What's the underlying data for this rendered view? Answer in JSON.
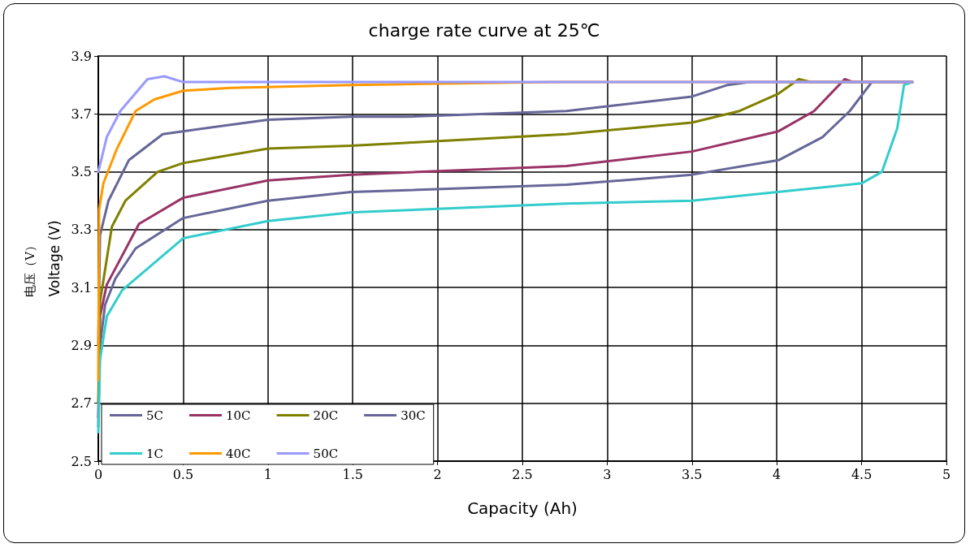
{
  "chart_data": {
    "type": "line",
    "title": "charge rate curve at 25℃",
    "xlabel": "Capacity (Ah)",
    "ylabel": "Voltage (V)",
    "annotations": [
      "电压（V）"
    ],
    "xlim": [
      0,
      5
    ],
    "xticks": [
      0,
      0.5,
      1,
      1.5,
      2,
      2.5,
      3,
      3.5,
      4,
      4.5,
      5
    ],
    "ylim": [
      2.5,
      3.9
    ],
    "yticks": [
      2.5,
      2.7,
      2.9,
      3.1,
      3.3,
      3.5,
      3.7,
      3.9
    ],
    "grid": true,
    "legend": "bottom left",
    "marker": "none",
    "line_style": "solid",
    "series": [
      {
        "name": "5C",
        "color": "#666699",
        "x": [
          0,
          0.01,
          0.04,
          0.1,
          0.22,
          0.5,
          1,
          1.49,
          2.76,
          3.5,
          4.01,
          4.27,
          4.43,
          4.56,
          4.8
        ],
        "values": [
          2.62,
          2.9,
          3.04,
          3.13,
          3.235,
          3.34,
          3.4,
          3.43,
          3.455,
          3.49,
          3.54,
          3.62,
          3.71,
          3.81,
          3.81
        ]
      },
      {
        "name": "10C",
        "color": "#993366",
        "x": [
          0,
          0.01,
          0.05,
          0.24,
          0.5,
          1,
          1.49,
          2.76,
          3.5,
          4.01,
          4.22,
          4.4,
          4.45,
          4.8
        ],
        "values": [
          2.65,
          3.0,
          3.11,
          3.32,
          3.41,
          3.47,
          3.49,
          3.52,
          3.57,
          3.64,
          3.71,
          3.82,
          3.81,
          3.81
        ]
      },
      {
        "name": "20C",
        "color": "#808000",
        "x": [
          0,
          0.01,
          0.08,
          0.16,
          0.35,
          0.5,
          1,
          1.49,
          1.81,
          2.76,
          3.5,
          3.78,
          4.01,
          4.13,
          4.2,
          4.8
        ],
        "values": [
          2.7,
          3.05,
          3.31,
          3.4,
          3.5,
          3.53,
          3.58,
          3.59,
          3.6,
          3.63,
          3.67,
          3.71,
          3.77,
          3.82,
          3.81,
          3.81
        ]
      },
      {
        "name": "30C",
        "color": "#666699",
        "x": [
          0,
          0.01,
          0.06,
          0.18,
          0.38,
          0.5,
          1,
          1.49,
          1.81,
          2.76,
          3.5,
          3.71,
          3.84,
          4.8
        ],
        "values": [
          2.9,
          3.28,
          3.4,
          3.54,
          3.63,
          3.64,
          3.68,
          3.69,
          3.69,
          3.71,
          3.76,
          3.8,
          3.81,
          3.81
        ]
      },
      {
        "name": "1C",
        "color": "#33cccc",
        "x": [
          0,
          0.01,
          0.05,
          0.14,
          0.5,
          1,
          1.5,
          2.76,
          3.5,
          4.5,
          4.62,
          4.71,
          4.75,
          4.8
        ],
        "values": [
          2.6,
          2.85,
          3.0,
          3.09,
          3.27,
          3.33,
          3.36,
          3.39,
          3.4,
          3.46,
          3.5,
          3.65,
          3.8,
          3.81
        ]
      },
      {
        "name": "40C",
        "color": "#ff9900",
        "x": [
          0,
          0.005,
          0.03,
          0.11,
          0.22,
          0.33,
          0.5,
          0.78,
          1.49,
          2.7,
          4.8
        ],
        "values": [
          2.78,
          3.37,
          3.46,
          3.58,
          3.71,
          3.75,
          3.78,
          3.79,
          3.8,
          3.81,
          3.81
        ]
      },
      {
        "name": "50C",
        "color": "#9999ff",
        "x": [
          0,
          0.05,
          0.13,
          0.29,
          0.39,
          0.5,
          4.8
        ],
        "values": [
          3.5,
          3.62,
          3.71,
          3.82,
          3.83,
          3.81,
          3.81
        ]
      }
    ]
  }
}
